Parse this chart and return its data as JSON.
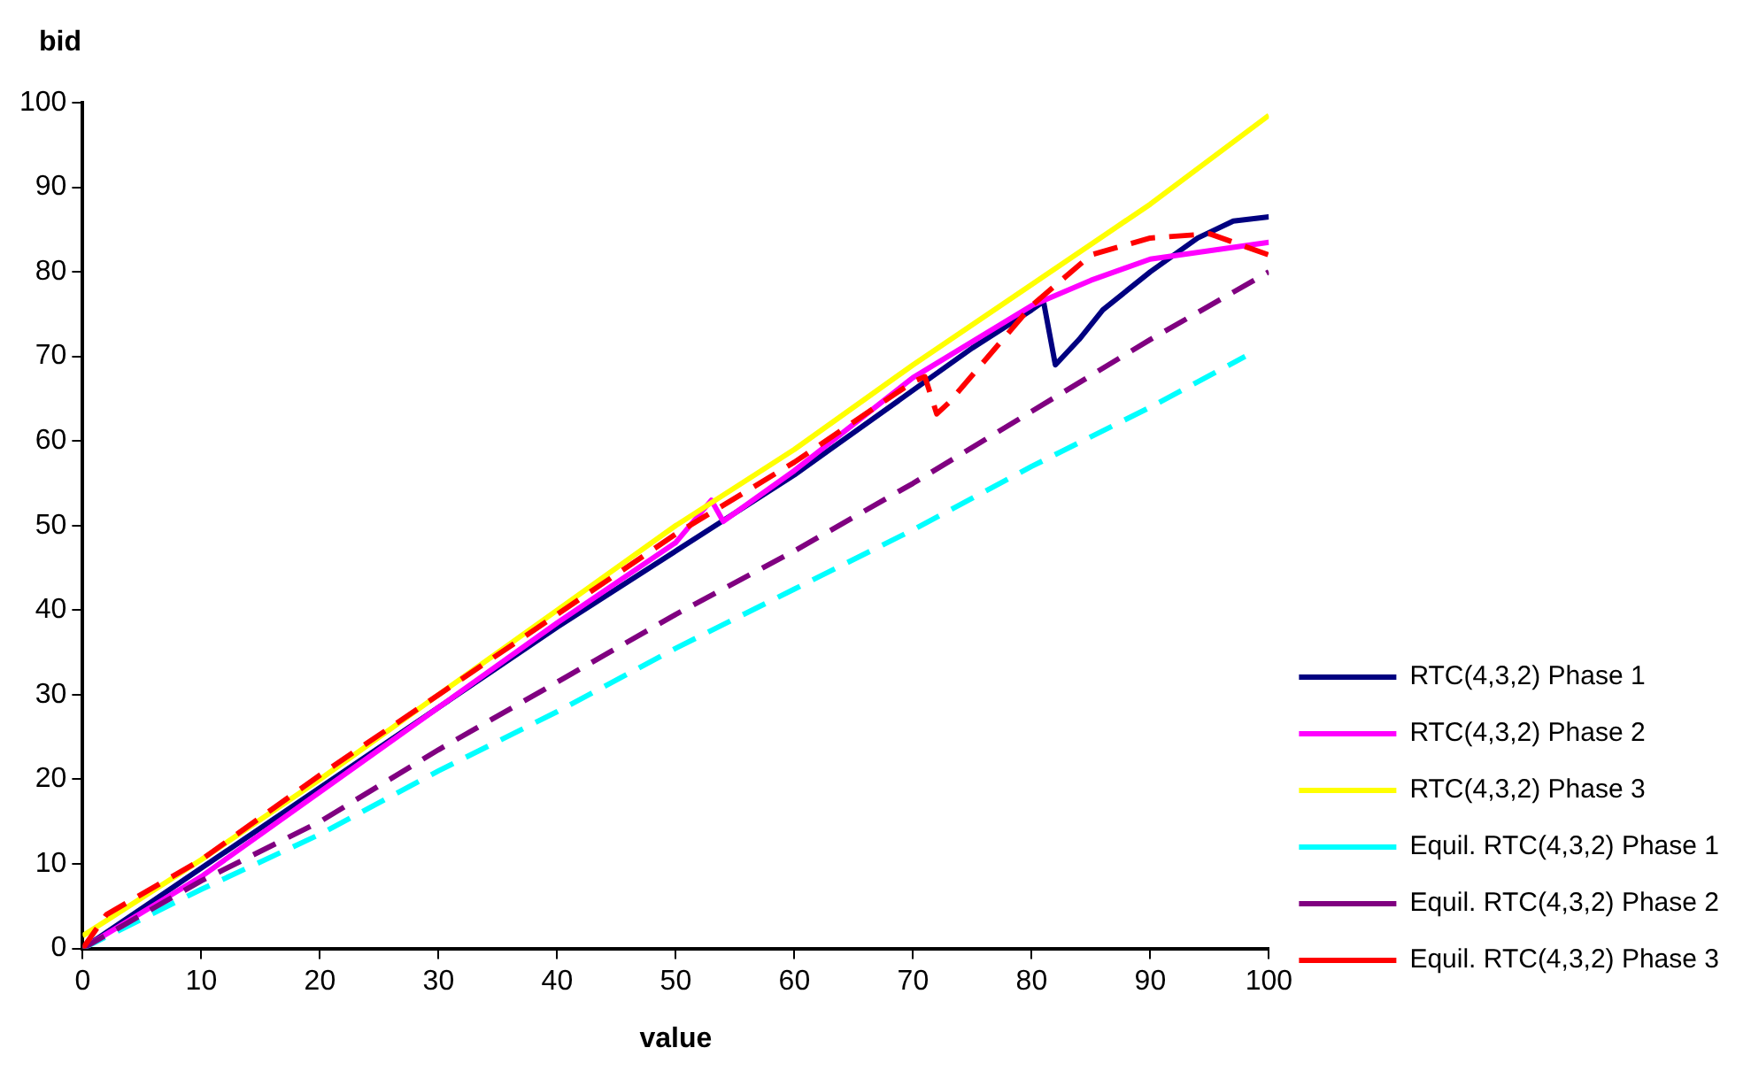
{
  "chart_data": {
    "type": "line",
    "xlabel": "value",
    "ylabel": "bid",
    "xlim": [
      0,
      100
    ],
    "xticks": [
      0,
      10,
      20,
      30,
      40,
      50,
      60,
      70,
      80,
      90,
      100
    ],
    "ylim": [
      0,
      100
    ],
    "yticks": [
      0,
      10,
      20,
      30,
      40,
      50,
      60,
      70,
      80,
      90,
      100
    ],
    "grid": false,
    "legend": "bottom right",
    "marker": "none",
    "series": [
      {
        "name": "RTC(4,3,2) Phase 1",
        "color": "#000080",
        "line_style": "solid",
        "x": [
          0,
          10,
          20,
          30,
          40,
          50,
          55,
          60,
          70,
          75,
          80,
          81,
          82,
          84,
          86,
          90,
          94,
          97,
          100
        ],
        "values": [
          0,
          9.5,
          19,
          28.5,
          38,
          47,
          51.5,
          56,
          66,
          71,
          75.5,
          76.5,
          69,
          72,
          75.5,
          80,
          84,
          86,
          86.5
        ]
      },
      {
        "name": "RTC(4,3,2) Phase 2",
        "color": "#ff00ff",
        "line_style": "solid",
        "x": [
          0,
          10,
          20,
          30,
          40,
          50,
          53,
          54,
          60,
          70,
          80,
          85,
          90,
          95,
          100
        ],
        "values": [
          0,
          8.5,
          18.5,
          28.5,
          38.5,
          48,
          53,
          50.5,
          56.5,
          67.5,
          76,
          79,
          81.5,
          82.5,
          83.5
        ]
      },
      {
        "name": "RTC(4,3,2) Phase 3",
        "color": "#ffff00",
        "line_style": "solid",
        "x": [
          0,
          10,
          20,
          30,
          40,
          50,
          60,
          70,
          80,
          90,
          100
        ],
        "values": [
          1.5,
          10.5,
          20,
          30,
          40,
          50,
          59,
          69,
          78.5,
          88,
          98.5
        ]
      },
      {
        "name": "Equil. RTC(4,3,2) Phase 1",
        "color": "#00ffff",
        "line_style": "dashed",
        "x": [
          0,
          10,
          20,
          30,
          40,
          50,
          60,
          70,
          80,
          90,
          98
        ],
        "values": [
          0,
          7,
          13.5,
          21,
          28,
          35.5,
          42.5,
          49.5,
          57,
          64,
          70
        ]
      },
      {
        "name": "Equil. RTC(4,3,2) Phase 2",
        "color": "#800080",
        "line_style": "dashed",
        "x": [
          0,
          10,
          20,
          30,
          40,
          50,
          60,
          70,
          80,
          90,
          100
        ],
        "values": [
          0,
          8,
          15,
          23.5,
          31.5,
          39.5,
          47,
          55,
          63.5,
          72,
          80
        ]
      },
      {
        "name": "Equil. RTC(4,3,2) Phase 3",
        "color": "#ff0000",
        "line_style": "dashed",
        "x": [
          0,
          2,
          10,
          20,
          30,
          40,
          50,
          60,
          70,
          71,
          72,
          73,
          80,
          85,
          90,
          95,
          100
        ],
        "values": [
          0,
          4,
          10.5,
          20.5,
          30,
          39.5,
          49,
          57.5,
          67,
          67.6,
          63.2,
          64.5,
          76,
          82,
          84,
          84.5,
          82
        ]
      }
    ]
  }
}
